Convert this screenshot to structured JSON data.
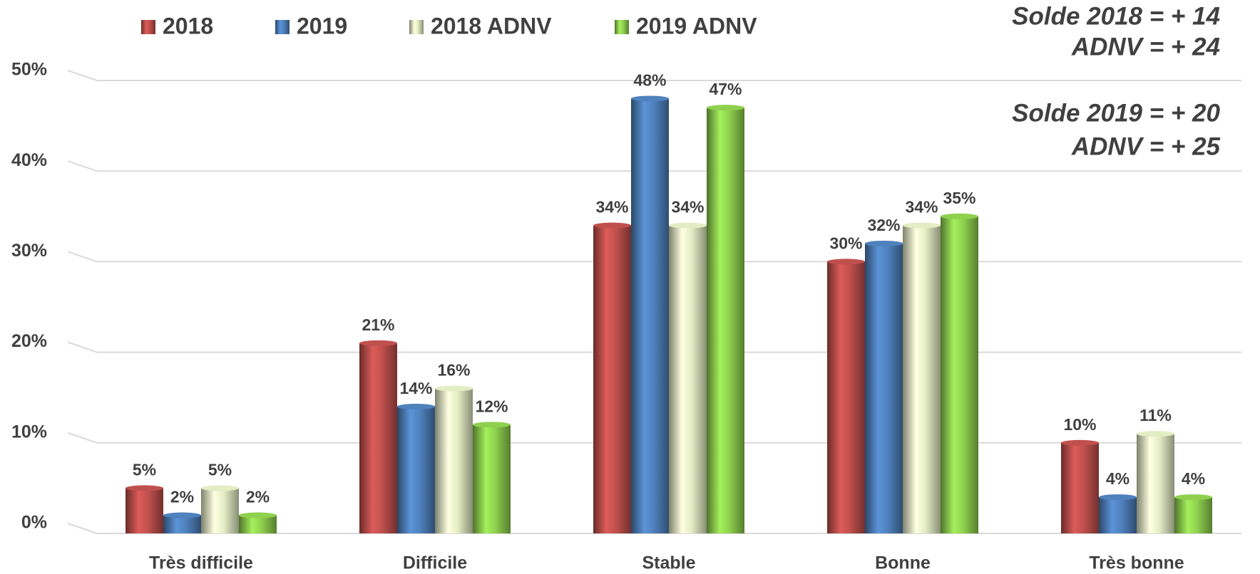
{
  "chart_data": {
    "type": "bar",
    "categories": [
      "Très difficile",
      "Difficile",
      "Stable",
      "Bonne",
      "Très bonne"
    ],
    "series": [
      {
        "name": "2018",
        "color": "#c0504d",
        "values": [
          5,
          21,
          34,
          30,
          10
        ],
        "value_labels": [
          "5%",
          "21%",
          "34%",
          "30%",
          "10%"
        ]
      },
      {
        "name": "2019",
        "color": "#4f81bd",
        "values": [
          2,
          14,
          48,
          32,
          4
        ],
        "value_labels": [
          "2%",
          "14%",
          "48%",
          "32%",
          "4%"
        ]
      },
      {
        "name": "2018 ADNV",
        "color": "#e3edc4",
        "values": [
          5,
          16,
          34,
          34,
          11
        ],
        "value_labels": [
          "5%",
          "16%",
          "34%",
          "34%",
          "11%"
        ]
      },
      {
        "name": "2019 ADNV",
        "color": "#8fd14f",
        "values": [
          2,
          12,
          47,
          35,
          4
        ],
        "value_labels": [
          "2%",
          "12%",
          "47%",
          "35%",
          "4%"
        ]
      }
    ],
    "ylim": [
      0,
      50
    ],
    "yticks": [
      {
        "value": 0,
        "label": "0%"
      },
      {
        "value": 10,
        "label": "10%"
      },
      {
        "value": 20,
        "label": "20%"
      },
      {
        "value": 30,
        "label": "30%"
      },
      {
        "value": 40,
        "label": "40%"
      },
      {
        "value": 50,
        "label": "50%"
      }
    ],
    "grid": true,
    "annotations": [
      "Solde 2018 = + 14",
      "ADNV = + 24",
      "Solde 2019 = + 20",
      "ADNV = + 25"
    ]
  }
}
